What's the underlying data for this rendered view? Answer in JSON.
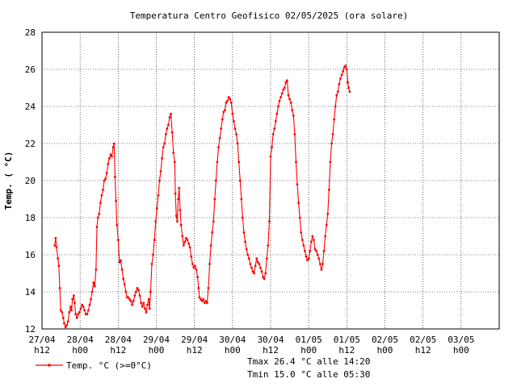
{
  "colors": {
    "series": "#ff0000",
    "grid": "#000000",
    "background": "#ffffff",
    "text": "#000000"
  },
  "chart_data": {
    "type": "line",
    "title": "Temperatura Centro Geofisico 02/05/2025 (ora solare)",
    "xlabel": "",
    "ylabel": "Temp. ( °C)",
    "ylim": [
      12,
      28
    ],
    "yticks": [
      12,
      14,
      16,
      18,
      20,
      22,
      24,
      26,
      28
    ],
    "xlim_hours": [
      0,
      144
    ],
    "grid": true,
    "legend_position": "bottom-left",
    "xticks": [
      {
        "hour": 0,
        "date": "27/04",
        "time": "h12"
      },
      {
        "hour": 12,
        "date": "28/04",
        "time": "h00"
      },
      {
        "hour": 24,
        "date": "28/04",
        "time": "h12"
      },
      {
        "hour": 36,
        "date": "29/04",
        "time": "h00"
      },
      {
        "hour": 48,
        "date": "29/04",
        "time": "h12"
      },
      {
        "hour": 60,
        "date": "30/04",
        "time": "h00"
      },
      {
        "hour": 72,
        "date": "30/04",
        "time": "h12"
      },
      {
        "hour": 84,
        "date": "01/05",
        "time": "h00"
      },
      {
        "hour": 96,
        "date": "01/05",
        "time": "h12"
      },
      {
        "hour": 108,
        "date": "02/05",
        "time": "h00"
      },
      {
        "hour": 120,
        "date": "02/05",
        "time": "h12"
      },
      {
        "hour": 132,
        "date": "03/05",
        "time": "h00"
      }
    ],
    "series": [
      {
        "name": "Temp. °C (>=0°C)",
        "points": [
          [
            4.0,
            16.5
          ],
          [
            4.3,
            16.9
          ],
          [
            4.6,
            16.4
          ],
          [
            5.0,
            15.8
          ],
          [
            5.3,
            15.4
          ],
          [
            5.6,
            14.2
          ],
          [
            5.9,
            13.0
          ],
          [
            6.3,
            12.9
          ],
          [
            6.7,
            12.6
          ],
          [
            7.0,
            12.3
          ],
          [
            7.4,
            12.1
          ],
          [
            7.8,
            12.2
          ],
          [
            8.2,
            12.4
          ],
          [
            8.6,
            12.9
          ],
          [
            9.0,
            13.2
          ],
          [
            9.3,
            13.0
          ],
          [
            9.6,
            13.6
          ],
          [
            10.0,
            13.8
          ],
          [
            10.3,
            13.4
          ],
          [
            10.6,
            12.8
          ],
          [
            11.0,
            12.6
          ],
          [
            11.4,
            12.8
          ],
          [
            11.8,
            12.9
          ],
          [
            12.2,
            13.1
          ],
          [
            12.6,
            13.3
          ],
          [
            13.0,
            13.2
          ],
          [
            13.4,
            13.0
          ],
          [
            13.8,
            12.8
          ],
          [
            14.2,
            12.8
          ],
          [
            14.6,
            13.0
          ],
          [
            15.0,
            13.3
          ],
          [
            15.4,
            13.6
          ],
          [
            15.8,
            14.0
          ],
          [
            16.2,
            14.5
          ],
          [
            16.6,
            14.3
          ],
          [
            17.0,
            15.2
          ],
          [
            17.3,
            17.5
          ],
          [
            17.6,
            18.0
          ],
          [
            18.0,
            18.2
          ],
          [
            18.4,
            18.8
          ],
          [
            18.8,
            19.2
          ],
          [
            19.2,
            19.5
          ],
          [
            19.6,
            20.0
          ],
          [
            20.0,
            20.1
          ],
          [
            20.4,
            20.4
          ],
          [
            20.8,
            20.9
          ],
          [
            21.2,
            21.2
          ],
          [
            21.6,
            21.4
          ],
          [
            22.0,
            21.3
          ],
          [
            22.4,
            21.8
          ],
          [
            22.7,
            22.0
          ],
          [
            23.0,
            20.2
          ],
          [
            23.3,
            18.9
          ],
          [
            23.6,
            17.6
          ],
          [
            24.0,
            16.8
          ],
          [
            24.4,
            15.6
          ],
          [
            24.8,
            15.7
          ],
          [
            25.2,
            15.2
          ],
          [
            25.6,
            14.7
          ],
          [
            26.0,
            14.4
          ],
          [
            26.4,
            14.0
          ],
          [
            26.8,
            13.7
          ],
          [
            27.2,
            13.7
          ],
          [
            27.6,
            13.6
          ],
          [
            28.0,
            13.5
          ],
          [
            28.4,
            13.3
          ],
          [
            28.8,
            13.5
          ],
          [
            29.2,
            13.8
          ],
          [
            29.6,
            14.0
          ],
          [
            30.0,
            14.2
          ],
          [
            30.4,
            14.1
          ],
          [
            30.8,
            13.8
          ],
          [
            31.2,
            13.4
          ],
          [
            31.6,
            13.2
          ],
          [
            32.0,
            13.4
          ],
          [
            32.4,
            13.1
          ],
          [
            32.8,
            12.9
          ],
          [
            33.2,
            13.3
          ],
          [
            33.6,
            13.6
          ],
          [
            33.9,
            13.1
          ],
          [
            34.2,
            14.0
          ],
          [
            34.6,
            15.5
          ],
          [
            35.0,
            16.0
          ],
          [
            35.4,
            16.8
          ],
          [
            35.8,
            17.8
          ],
          [
            36.2,
            18.5
          ],
          [
            36.6,
            19.2
          ],
          [
            37.0,
            20.0
          ],
          [
            37.4,
            20.5
          ],
          [
            37.8,
            21.2
          ],
          [
            38.2,
            21.8
          ],
          [
            38.6,
            22.0
          ],
          [
            39.0,
            22.5
          ],
          [
            39.4,
            22.8
          ],
          [
            39.8,
            23.0
          ],
          [
            40.2,
            23.4
          ],
          [
            40.6,
            23.6
          ],
          [
            41.0,
            22.6
          ],
          [
            41.4,
            21.5
          ],
          [
            41.8,
            21.0
          ],
          [
            42.0,
            19.3
          ],
          [
            42.3,
            18.1
          ],
          [
            42.6,
            17.8
          ],
          [
            42.9,
            19.0
          ],
          [
            43.2,
            19.6
          ],
          [
            43.5,
            18.4
          ],
          [
            43.8,
            17.6
          ],
          [
            44.2,
            17.0
          ],
          [
            44.6,
            16.5
          ],
          [
            45.0,
            16.7
          ],
          [
            45.4,
            16.9
          ],
          [
            45.8,
            16.8
          ],
          [
            46.2,
            16.6
          ],
          [
            46.6,
            16.4
          ],
          [
            47.0,
            15.9
          ],
          [
            47.4,
            15.5
          ],
          [
            47.8,
            15.3
          ],
          [
            48.2,
            15.4
          ],
          [
            48.6,
            15.2
          ],
          [
            49.0,
            14.8
          ],
          [
            49.3,
            14.2
          ],
          [
            49.6,
            13.7
          ],
          [
            50.0,
            13.6
          ],
          [
            50.4,
            13.5
          ],
          [
            50.8,
            13.6
          ],
          [
            51.2,
            13.4
          ],
          [
            51.6,
            13.5
          ],
          [
            52.0,
            13.4
          ],
          [
            52.4,
            14.2
          ],
          [
            52.8,
            15.5
          ],
          [
            53.2,
            16.5
          ],
          [
            53.6,
            17.2
          ],
          [
            54.0,
            17.8
          ],
          [
            54.4,
            19.0
          ],
          [
            54.8,
            20.0
          ],
          [
            55.2,
            21.0
          ],
          [
            55.6,
            21.8
          ],
          [
            56.0,
            22.3
          ],
          [
            56.4,
            22.8
          ],
          [
            56.8,
            23.3
          ],
          [
            57.2,
            23.7
          ],
          [
            57.6,
            23.8
          ],
          [
            58.0,
            24.2
          ],
          [
            58.4,
            24.3
          ],
          [
            58.8,
            24.5
          ],
          [
            59.2,
            24.4
          ],
          [
            59.6,
            24.2
          ],
          [
            60.0,
            23.6
          ],
          [
            60.4,
            23.2
          ],
          [
            60.8,
            22.8
          ],
          [
            61.2,
            22.5
          ],
          [
            61.6,
            22.0
          ],
          [
            62.0,
            21.0
          ],
          [
            62.4,
            20.0
          ],
          [
            62.8,
            19.0
          ],
          [
            63.2,
            18.0
          ],
          [
            63.6,
            17.2
          ],
          [
            64.0,
            16.7
          ],
          [
            64.4,
            16.3
          ],
          [
            64.8,
            16.0
          ],
          [
            65.2,
            15.8
          ],
          [
            65.6,
            15.5
          ],
          [
            66.0,
            15.3
          ],
          [
            66.4,
            15.1
          ],
          [
            66.8,
            15.0
          ],
          [
            67.2,
            15.4
          ],
          [
            67.6,
            15.8
          ],
          [
            68.0,
            15.6
          ],
          [
            68.4,
            15.5
          ],
          [
            68.8,
            15.3
          ],
          [
            69.2,
            15.1
          ],
          [
            69.6,
            14.8
          ],
          [
            70.0,
            14.7
          ],
          [
            70.4,
            15.0
          ],
          [
            70.8,
            15.8
          ],
          [
            71.2,
            16.5
          ],
          [
            71.6,
            17.8
          ],
          [
            72.0,
            21.3
          ],
          [
            72.4,
            21.8
          ],
          [
            72.8,
            22.5
          ],
          [
            73.2,
            22.8
          ],
          [
            73.6,
            23.2
          ],
          [
            74.0,
            23.6
          ],
          [
            74.4,
            24.0
          ],
          [
            74.8,
            24.3
          ],
          [
            75.2,
            24.5
          ],
          [
            75.6,
            24.7
          ],
          [
            76.0,
            24.9
          ],
          [
            76.4,
            25.0
          ],
          [
            76.8,
            25.3
          ],
          [
            77.2,
            25.4
          ],
          [
            77.6,
            24.6
          ],
          [
            78.0,
            24.4
          ],
          [
            78.4,
            24.2
          ],
          [
            78.8,
            23.8
          ],
          [
            79.2,
            23.5
          ],
          [
            79.6,
            22.5
          ],
          [
            80.0,
            21.0
          ],
          [
            80.4,
            19.8
          ],
          [
            80.8,
            18.8
          ],
          [
            81.2,
            18.0
          ],
          [
            81.6,
            17.2
          ],
          [
            82.0,
            16.8
          ],
          [
            82.4,
            16.5
          ],
          [
            82.8,
            16.2
          ],
          [
            83.2,
            15.9
          ],
          [
            83.6,
            15.7
          ],
          [
            84.0,
            15.8
          ],
          [
            84.4,
            16.2
          ],
          [
            84.8,
            16.7
          ],
          [
            85.2,
            17.0
          ],
          [
            85.6,
            16.8
          ],
          [
            86.0,
            16.3
          ],
          [
            86.4,
            16.2
          ],
          [
            86.8,
            16.0
          ],
          [
            87.2,
            15.8
          ],
          [
            87.6,
            15.5
          ],
          [
            88.0,
            15.2
          ],
          [
            88.4,
            15.5
          ],
          [
            88.8,
            16.2
          ],
          [
            89.2,
            17.0
          ],
          [
            89.6,
            17.6
          ],
          [
            90.0,
            18.2
          ],
          [
            90.4,
            19.5
          ],
          [
            90.8,
            21.0
          ],
          [
            91.2,
            22.0
          ],
          [
            91.6,
            22.5
          ],
          [
            92.0,
            23.3
          ],
          [
            92.4,
            24.0
          ],
          [
            92.8,
            24.6
          ],
          [
            93.2,
            24.8
          ],
          [
            93.6,
            25.2
          ],
          [
            94.0,
            25.5
          ],
          [
            94.4,
            25.7
          ],
          [
            94.8,
            25.9
          ],
          [
            95.2,
            26.1
          ],
          [
            95.6,
            26.2
          ],
          [
            96.0,
            26.0
          ],
          [
            96.3,
            25.3
          ],
          [
            96.6,
            25.0
          ],
          [
            96.9,
            24.8
          ]
        ]
      }
    ],
    "legend": {
      "label": "Temp. °C (>=0°C)"
    },
    "annotations": {
      "tmax": "Tmax 26.4 °C alle 14:20",
      "tmin": "Tmin 15.0 °C alle 05:30"
    }
  }
}
